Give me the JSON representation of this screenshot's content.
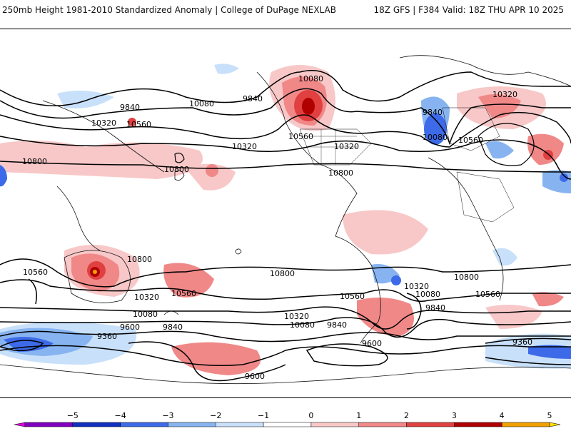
{
  "header": {
    "left": "250mb Height 1981-2010 Standardized Anomaly | College of DuPage NEXLAB",
    "right": "18Z GFS | F384 Valid: 18Z THU APR 10 2025"
  },
  "map": {
    "contour_labels": [
      "9360",
      "9600",
      "9840",
      "10080",
      "10320",
      "10560",
      "10800"
    ],
    "labels": [
      {
        "text": "10080"
      },
      {
        "text": "9840"
      },
      {
        "text": "9840"
      },
      {
        "text": "10080"
      },
      {
        "text": "9840"
      },
      {
        "text": "10320"
      },
      {
        "text": "10320"
      },
      {
        "text": "10560"
      },
      {
        "text": "10560"
      },
      {
        "text": "10320"
      },
      {
        "text": "10560"
      },
      {
        "text": "10800"
      },
      {
        "text": "10800"
      },
      {
        "text": "10800"
      },
      {
        "text": "10560"
      },
      {
        "text": "10800"
      },
      {
        "text": "10800"
      },
      {
        "text": "10320"
      },
      {
        "text": "10560"
      },
      {
        "text": "10800"
      },
      {
        "text": "10560"
      },
      {
        "text": "10560"
      },
      {
        "text": "10320"
      },
      {
        "text": "10080"
      },
      {
        "text": "10320"
      },
      {
        "text": "9840"
      },
      {
        "text": "10080"
      },
      {
        "text": "9840"
      },
      {
        "text": "9600"
      },
      {
        "text": "9360"
      },
      {
        "text": "9840"
      },
      {
        "text": "9600"
      },
      {
        "text": "9600"
      },
      {
        "text": "9360"
      },
      {
        "text": "10320"
      },
      {
        "text": "10080"
      },
      {
        "text": "10080"
      }
    ]
  },
  "colorbar": {
    "ticks": [
      "−5",
      "−4",
      "−3",
      "−2",
      "−1",
      "0",
      "1",
      "2",
      "3",
      "4",
      "5"
    ],
    "colors": [
      "#e000e0",
      "#8000c0",
      "#1030c0",
      "#3c6ae8",
      "#87b4f0",
      "#c8e0fa",
      "#ffffff",
      "#f8c8c8",
      "#f08888",
      "#e04040",
      "#b00000",
      "#f0a000",
      "#ffe000"
    ]
  }
}
